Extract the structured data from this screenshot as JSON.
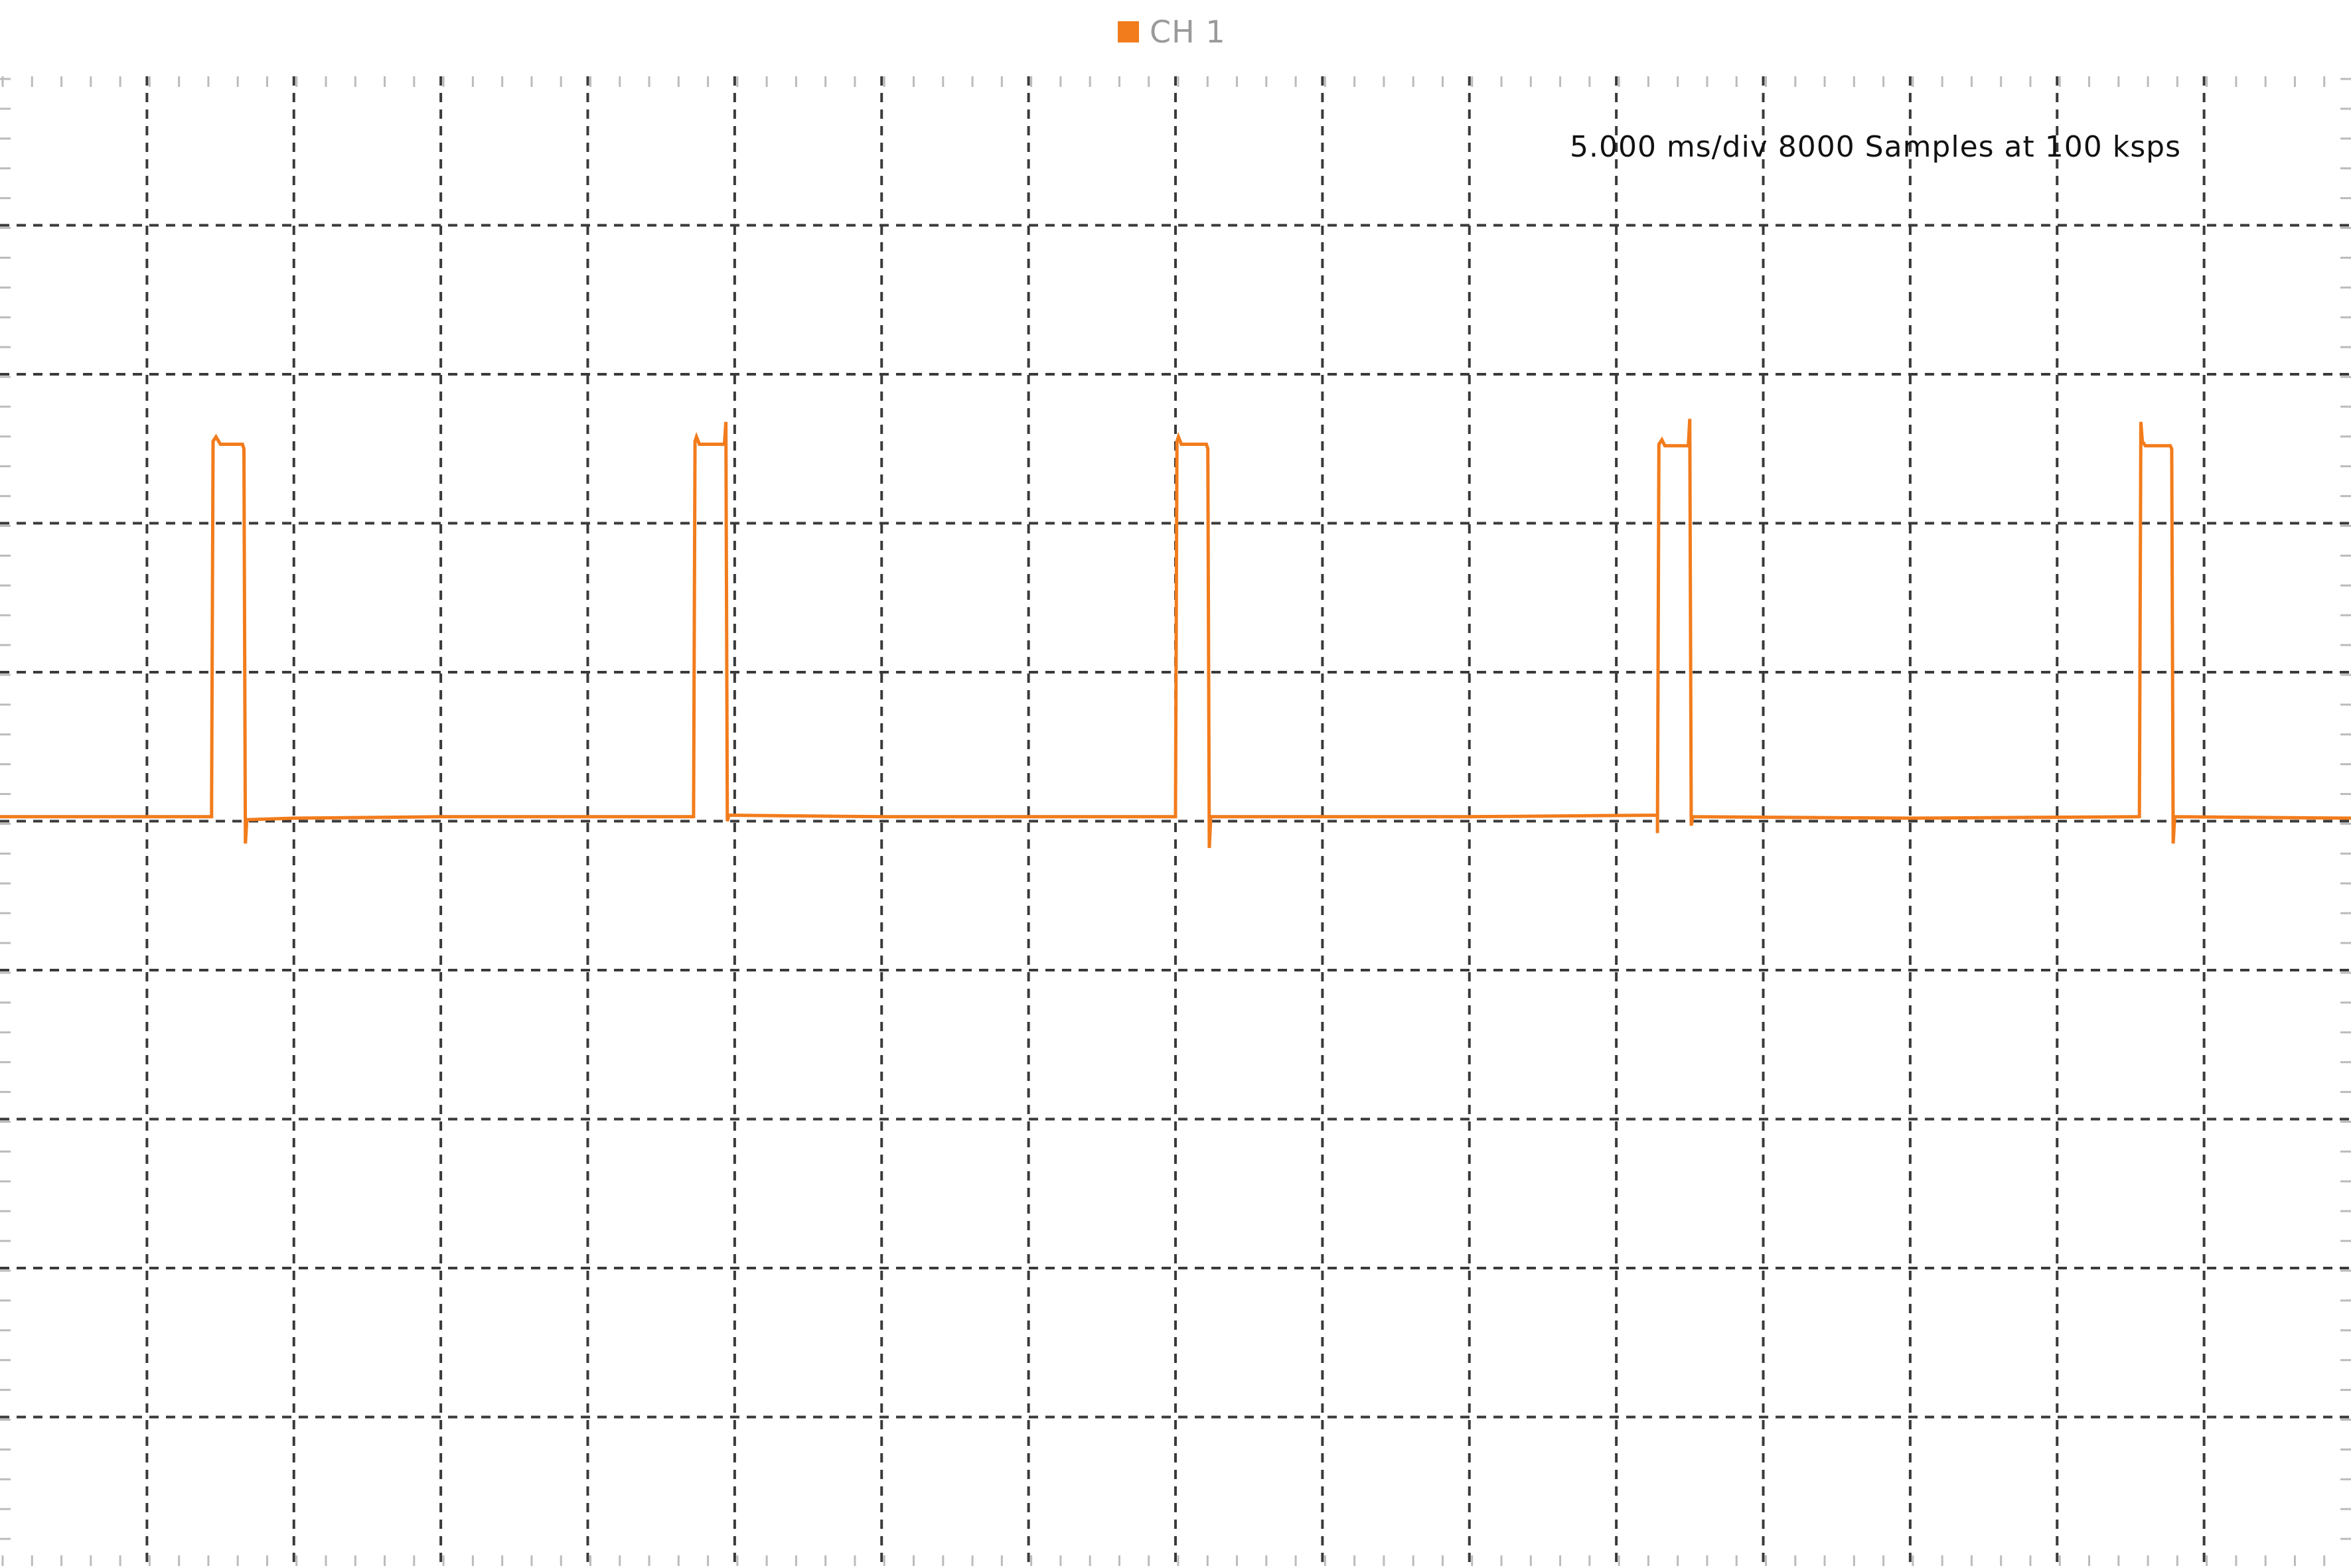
{
  "legend": {
    "label": "CH 1",
    "color": "#f27c1c"
  },
  "info_text": "5.000 ms/div 8000 Samples at 100 ksps",
  "chart_data": {
    "type": "line",
    "title": "",
    "xlabel": "",
    "ylabel": "",
    "grid": true,
    "divisions": {
      "x": 16,
      "y": 10
    },
    "time_per_div_ms": 5.0,
    "samples": 8000,
    "sample_rate_ksps": 100,
    "x_unit": "div",
    "y_unit": "div",
    "xlim": [
      0,
      16
    ],
    "ylim": [
      0,
      10
    ],
    "legend_position": "top-center",
    "series": [
      {
        "name": "CH 1",
        "color": "#f27c1c",
        "points": [
          [
            0.0,
            5.03
          ],
          [
            1.44,
            5.03
          ],
          [
            1.44,
            5.13
          ],
          [
            1.45,
            7.55
          ],
          [
            1.47,
            7.58
          ],
          [
            1.5,
            7.53
          ],
          [
            1.65,
            7.53
          ],
          [
            1.66,
            7.5
          ],
          [
            1.67,
            4.85
          ],
          [
            1.68,
            5.01
          ],
          [
            2.0,
            5.02
          ],
          [
            3.0,
            5.03
          ],
          [
            4.72,
            5.03
          ],
          [
            4.72,
            5.02
          ],
          [
            4.73,
            7.55
          ],
          [
            4.74,
            7.58
          ],
          [
            4.76,
            7.53
          ],
          [
            4.93,
            7.53
          ],
          [
            4.94,
            7.68
          ],
          [
            4.95,
            5.0
          ],
          [
            4.96,
            5.04
          ],
          [
            6.0,
            5.03
          ],
          [
            8.0,
            5.03
          ],
          [
            8.0,
            5.08
          ],
          [
            8.01,
            7.55
          ],
          [
            8.02,
            7.58
          ],
          [
            8.04,
            7.53
          ],
          [
            8.21,
            7.53
          ],
          [
            8.22,
            7.5
          ],
          [
            8.23,
            4.82
          ],
          [
            8.24,
            5.03
          ],
          [
            10.0,
            5.03
          ],
          [
            11.28,
            5.04
          ],
          [
            11.28,
            4.92
          ],
          [
            11.29,
            7.53
          ],
          [
            11.31,
            7.56
          ],
          [
            11.33,
            7.52
          ],
          [
            11.49,
            7.52
          ],
          [
            11.5,
            7.7
          ],
          [
            11.51,
            4.97
          ],
          [
            11.52,
            5.03
          ],
          [
            13.0,
            5.02
          ],
          [
            14.56,
            5.03
          ],
          [
            14.56,
            5.02
          ],
          [
            14.57,
            7.68
          ],
          [
            14.58,
            7.55
          ],
          [
            14.6,
            7.52
          ],
          [
            14.77,
            7.52
          ],
          [
            14.78,
            7.5
          ],
          [
            14.79,
            4.85
          ],
          [
            14.8,
            5.03
          ],
          [
            16.0,
            5.02
          ]
        ]
      }
    ]
  }
}
